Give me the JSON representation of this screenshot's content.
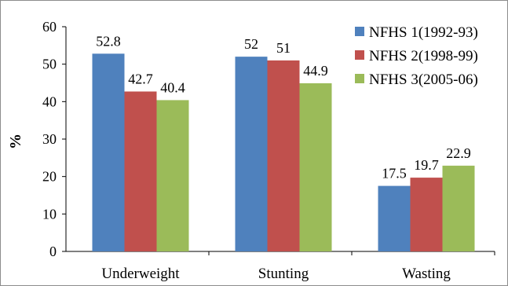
{
  "chart_data": {
    "type": "bar",
    "title": "",
    "xlabel": "",
    "ylabel": "%",
    "ylim": [
      0,
      60
    ],
    "yticks": [
      0,
      10,
      20,
      30,
      40,
      50,
      60
    ],
    "categories": [
      "Underweight",
      "Stunting",
      "Wasting"
    ],
    "series": [
      {
        "name": "NFHS 1(1992-93)",
        "color": "#4f81bd",
        "values": [
          52.8,
          52,
          17.5
        ],
        "labels": [
          "52.8",
          "52",
          "17.5"
        ]
      },
      {
        "name": "NFHS 2(1998-99)",
        "color": "#c0504d",
        "values": [
          42.7,
          51,
          19.7
        ],
        "labels": [
          "42.7",
          "51",
          "19.7"
        ]
      },
      {
        "name": "NFHS 3(2005-06)",
        "color": "#9bbb59",
        "values": [
          40.4,
          44.9,
          22.9
        ],
        "labels": [
          "40.4",
          "44.9",
          "22.9"
        ]
      }
    ],
    "grid": false,
    "legend_position": "top-right"
  }
}
